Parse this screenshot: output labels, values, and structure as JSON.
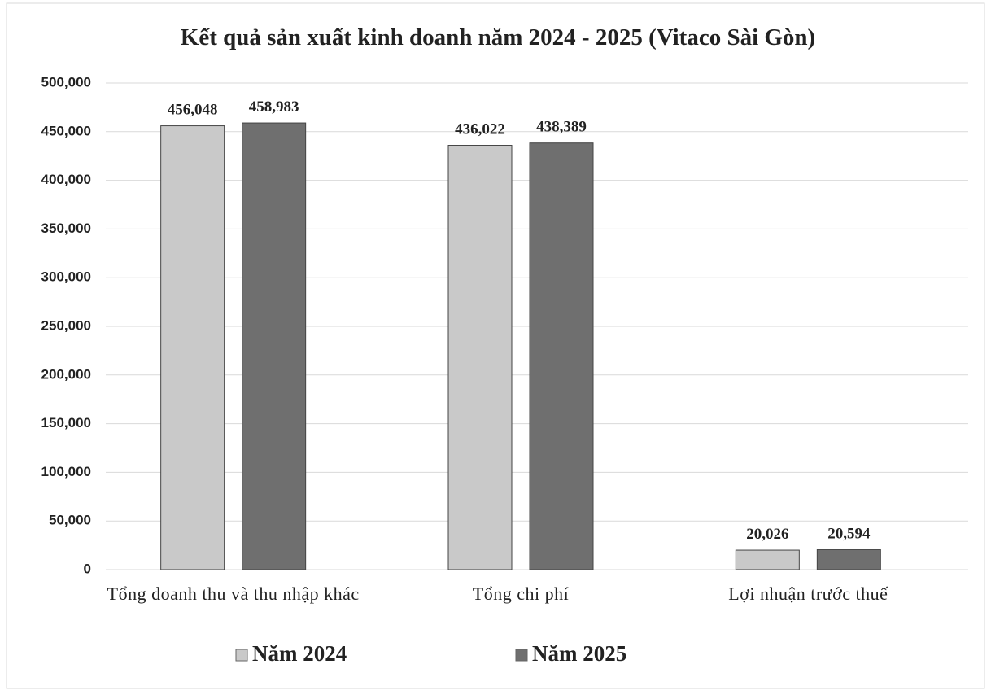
{
  "chart_data": {
    "type": "bar",
    "title": "Kết quả sản xuất kinh doanh năm 2024 - 2025 (Vitaco Sài Gòn)",
    "categories": [
      "Tổng doanh thu và thu nhập khác",
      "Tổng chi phí",
      "Lợi nhuận trước thuế"
    ],
    "series": [
      {
        "name": "Năm 2024",
        "color": "#c9c9c9",
        "values": [
          456048,
          436022,
          20026
        ],
        "value_labels": [
          "456,048",
          "436,022",
          "20,026"
        ]
      },
      {
        "name": "Năm 2025",
        "color": "#6f6f6f",
        "values": [
          458983,
          438389,
          20594
        ],
        "value_labels": [
          "458,983",
          "438,389",
          "20,594"
        ]
      }
    ],
    "ylim": [
      0,
      500000
    ],
    "yticks": [
      0,
      {
        "value": 50000,
        "label": "50,000"
      },
      {
        "value": 100000,
        "label": "100,000"
      },
      {
        "value": 150000,
        "label": "150,000"
      },
      {
        "value": 200000,
        "label": "200,000"
      },
      {
        "value": 250000,
        "label": "250,000"
      },
      {
        "value": 300000,
        "label": "300,000"
      },
      {
        "value": 350000,
        "label": "350,000"
      },
      {
        "value": 400000,
        "label": "400,000"
      },
      {
        "value": 450000,
        "label": "450,000"
      },
      {
        "value": 500000,
        "label": "500,000"
      }
    ],
    "grid": true,
    "legend": "bottom"
  }
}
